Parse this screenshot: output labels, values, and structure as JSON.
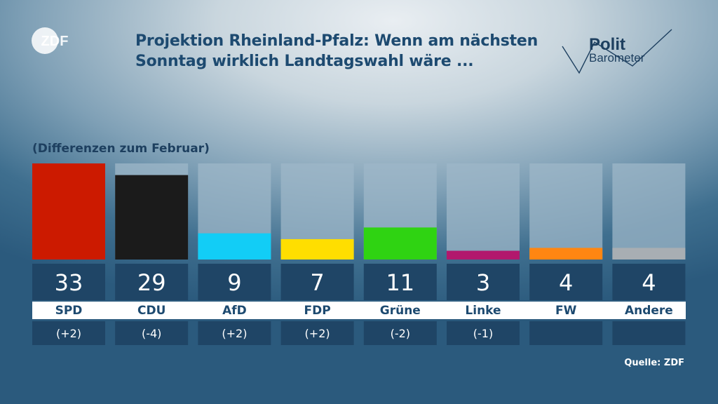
{
  "header": {
    "title": "Projektion Rheinland-Pfalz: Wenn am nächsten Sonntag wirklich Landtagswahl wäre ...",
    "logo_zdf_text": "ZDF",
    "logo_polit": "Polit",
    "logo_barometer": "Barometer"
  },
  "subtitle": "(Differenzen zum Februar)",
  "source": "Quelle: ZDF",
  "colors": {
    "title": "#1d4a70",
    "value_box": "#1f4566",
    "label_strip": "#ffffff",
    "label_text": "#1d4a70",
    "bar_background": "#9db7c8"
  },
  "chart_data": {
    "type": "bar",
    "title": "Projektion Rheinland-Pfalz: Wenn am nächsten Sonntag wirklich Landtagswahl wäre ...",
    "categories": [
      "SPD",
      "CDU",
      "AfD",
      "FDP",
      "Grüne",
      "Linke",
      "FW",
      "Andere"
    ],
    "values": [
      33,
      29,
      9,
      7,
      11,
      3,
      4,
      4
    ],
    "value_labels": [
      "33",
      "29",
      "9",
      "7",
      "11",
      "3",
      "4",
      "4"
    ],
    "changes": [
      "(+2)",
      "(-4)",
      "(+2)",
      "(+2)",
      "(-2)",
      "(-1)",
      "",
      ""
    ],
    "colors": [
      "#cc1a00",
      "#1b1b1b",
      "#12cdf6",
      "#ffde00",
      "#2fd312",
      "#b2186d",
      "#ff8612",
      "#a8aeb3"
    ],
    "ylim": [
      0,
      33
    ],
    "xlabel": "",
    "ylabel": "",
    "grid": false,
    "legend": "none"
  }
}
